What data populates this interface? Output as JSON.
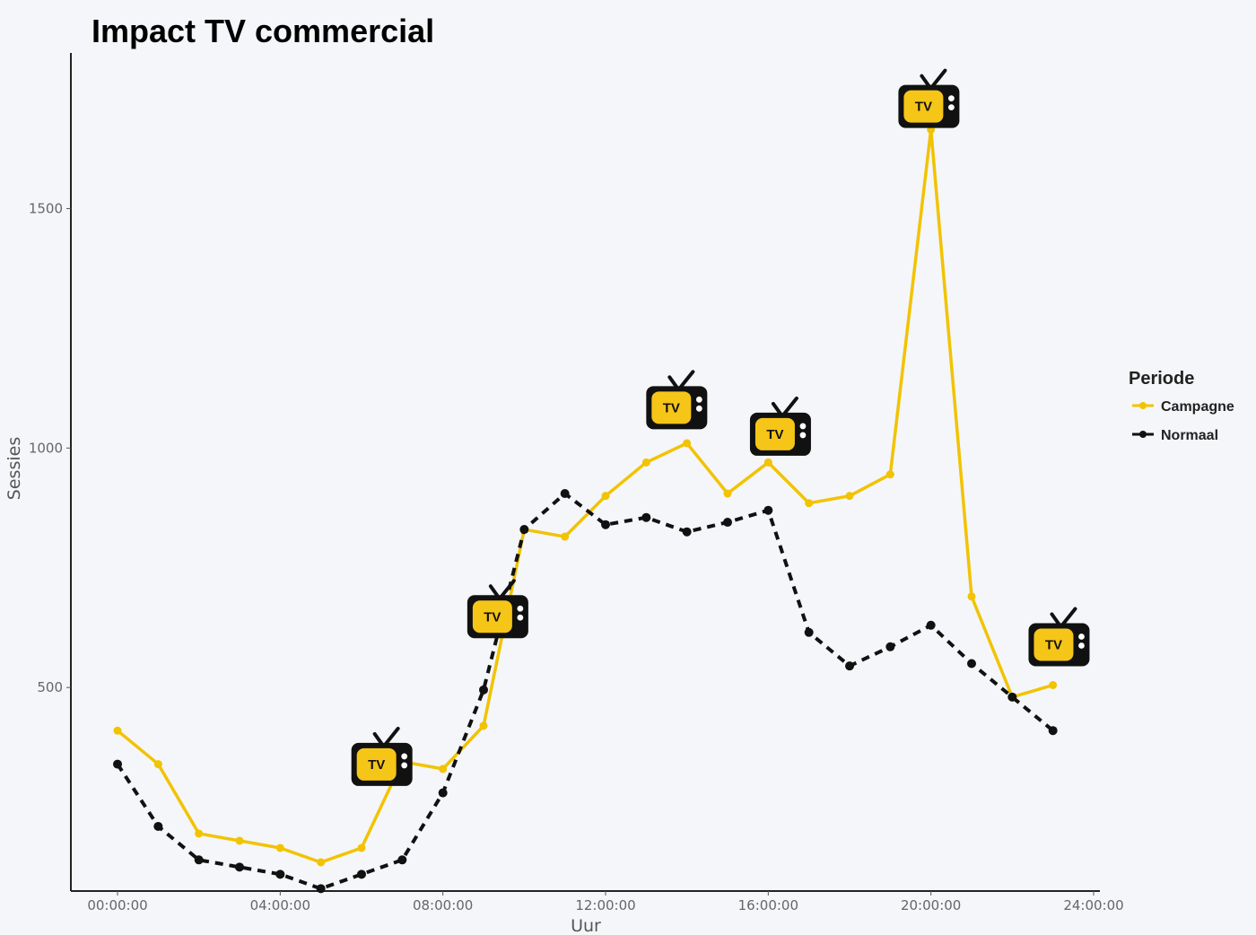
{
  "chart_data": {
    "type": "line",
    "title": "Impact TV commercial",
    "xlabel": "Uur",
    "ylabel": "Sessies",
    "x": [
      0,
      1,
      2,
      3,
      4,
      5,
      6,
      7,
      8,
      9,
      10,
      11,
      12,
      13,
      14,
      15,
      16,
      17,
      18,
      19,
      20,
      21,
      22,
      23
    ],
    "xlim": [
      0,
      24
    ],
    "ylim": [
      75,
      1825
    ],
    "x_ticks": [
      0,
      4,
      8,
      12,
      16,
      20,
      24
    ],
    "x_tick_labels": [
      "00:00:00",
      "04:00:00",
      "08:00:00",
      "12:00:00",
      "16:00:00",
      "20:00:00",
      "24:00:00"
    ],
    "y_ticks": [
      500,
      1000,
      1500
    ],
    "y_tick_labels": [
      "500",
      "1000",
      "1500"
    ],
    "grid": false,
    "legend": {
      "title": "Periode",
      "placement": "right"
    },
    "series": [
      {
        "name": "Campagne",
        "color": "#f2c300",
        "line_style": "solid",
        "values": [
          410,
          340,
          195,
          180,
          165,
          135,
          165,
          345,
          330,
          420,
          830,
          815,
          900,
          970,
          1010,
          905,
          970,
          885,
          900,
          945,
          1665,
          690,
          480,
          505
        ]
      },
      {
        "name": "Normaal",
        "color": "#111111",
        "line_style": "dashed",
        "values": [
          340,
          210,
          140,
          125,
          110,
          80,
          110,
          140,
          280,
          495,
          830,
          905,
          840,
          855,
          825,
          845,
          870,
          615,
          545,
          585,
          630,
          550,
          480,
          410
        ]
      }
    ],
    "annotations": [
      {
        "type": "tv-icon",
        "text": "TV",
        "x": 6.5
      },
      {
        "type": "tv-icon",
        "text": "TV",
        "x": 9.35
      },
      {
        "type": "tv-icon",
        "text": "TV",
        "x": 13.75
      },
      {
        "type": "tv-icon",
        "text": "TV",
        "x": 16.3
      },
      {
        "type": "tv-icon",
        "text": "TV",
        "x": 19.95
      },
      {
        "type": "tv-icon",
        "text": "TV",
        "x": 23.15
      }
    ]
  }
}
